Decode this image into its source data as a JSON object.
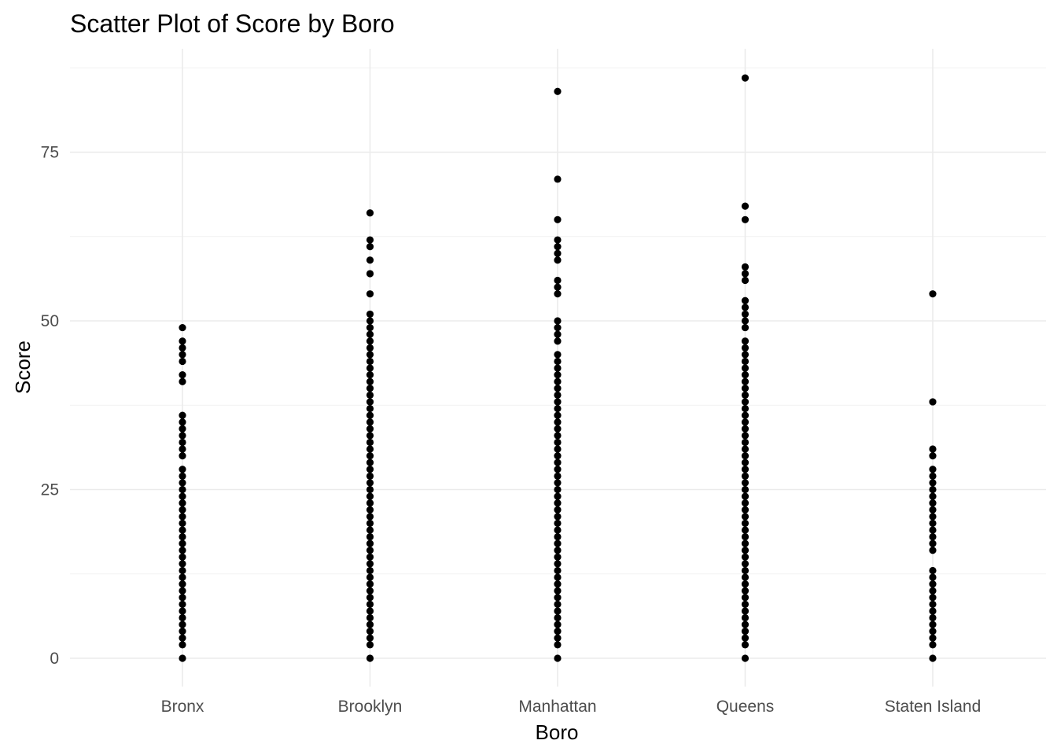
{
  "chart_data": {
    "type": "scatter",
    "title": "Scatter Plot of Score by Boro",
    "xlabel": "Boro",
    "ylabel": "Score",
    "categories": [
      "Bronx",
      "Brooklyn",
      "Manhattan",
      "Queens",
      "Staten Island"
    ],
    "y_ticks": [
      0,
      25,
      50,
      75
    ],
    "y_tick_labels": [
      "0",
      "25",
      "50",
      "75"
    ],
    "ylim": [
      -4,
      88
    ],
    "grid": true,
    "legend": "none",
    "point_color": "#000000",
    "series": [
      {
        "category": "Bronx",
        "values": [
          0,
          2,
          3,
          4,
          5,
          6,
          7,
          8,
          9,
          10,
          11,
          12,
          13,
          14,
          15,
          16,
          17,
          18,
          19,
          20,
          21,
          22,
          23,
          24,
          25,
          26,
          27,
          28,
          30,
          31,
          32,
          33,
          34,
          35,
          36,
          41,
          42,
          44,
          45,
          46,
          47,
          49
        ]
      },
      {
        "category": "Brooklyn",
        "values": [
          0,
          2,
          3,
          4,
          5,
          6,
          7,
          8,
          9,
          10,
          11,
          12,
          13,
          14,
          15,
          16,
          17,
          18,
          19,
          20,
          21,
          22,
          23,
          24,
          25,
          26,
          27,
          28,
          29,
          30,
          31,
          32,
          33,
          34,
          35,
          36,
          37,
          38,
          39,
          40,
          41,
          42,
          43,
          44,
          45,
          46,
          47,
          48,
          49,
          50,
          51,
          54,
          57,
          59,
          61,
          62,
          66
        ]
      },
      {
        "category": "Manhattan",
        "values": [
          0,
          2,
          3,
          4,
          5,
          6,
          7,
          8,
          9,
          10,
          11,
          12,
          13,
          14,
          15,
          16,
          17,
          18,
          19,
          20,
          21,
          22,
          23,
          24,
          25,
          26,
          27,
          28,
          29,
          30,
          31,
          32,
          33,
          34,
          35,
          36,
          37,
          38,
          39,
          40,
          41,
          42,
          43,
          44,
          45,
          47,
          48,
          49,
          50,
          54,
          55,
          56,
          59,
          60,
          61,
          62,
          65,
          71,
          84
        ]
      },
      {
        "category": "Queens",
        "values": [
          0,
          2,
          3,
          4,
          5,
          6,
          7,
          8,
          9,
          10,
          11,
          12,
          13,
          14,
          15,
          16,
          17,
          18,
          19,
          20,
          21,
          22,
          23,
          24,
          25,
          26,
          27,
          28,
          29,
          30,
          31,
          32,
          33,
          34,
          35,
          36,
          37,
          38,
          39,
          40,
          41,
          42,
          43,
          44,
          45,
          46,
          47,
          49,
          50,
          51,
          52,
          53,
          56,
          57,
          58,
          65,
          67,
          86
        ]
      },
      {
        "category": "Staten Island",
        "values": [
          0,
          2,
          3,
          4,
          5,
          6,
          7,
          8,
          9,
          10,
          11,
          12,
          13,
          16,
          17,
          18,
          19,
          20,
          21,
          22,
          23,
          24,
          25,
          26,
          27,
          28,
          30,
          31,
          38,
          54
        ]
      }
    ]
  }
}
